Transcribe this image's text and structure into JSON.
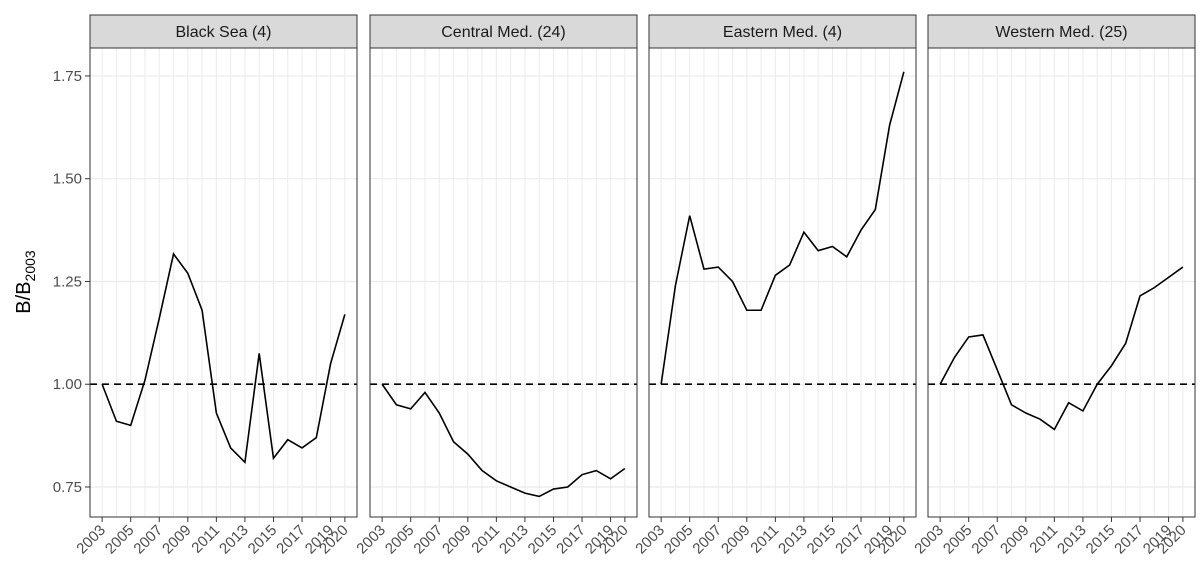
{
  "chart_data": [
    {
      "type": "line",
      "title": "Black Sea (4)",
      "ylabel": {
        "main": "B/B",
        "sub": "2003"
      },
      "x": [
        2003,
        2004,
        2005,
        2006,
        2007,
        2008,
        2009,
        2010,
        2011,
        2012,
        2013,
        2014,
        2015,
        2016,
        2017,
        2018,
        2019,
        2020
      ],
      "series": [
        {
          "color": "#000000",
          "values": [
            1.0,
            0.91,
            0.9,
            1.01,
            1.16,
            1.317,
            1.27,
            1.18,
            0.93,
            0.845,
            0.81,
            1.075,
            0.82,
            0.865,
            0.845,
            0.87,
            1.05,
            1.17
          ]
        }
      ],
      "xlim": [
        2002.15,
        2020.85
      ],
      "xticks": [
        2003,
        2005,
        2007,
        2009,
        2011,
        2013,
        2015,
        2017,
        2019,
        2020
      ],
      "ylim": [
        0.677,
        1.818
      ],
      "yticks": [
        0.75,
        {
          "value": 1,
          "label": "1.00"
        },
        1.25,
        {
          "value": 1.5,
          "label": "1.50"
        },
        1.75
      ],
      "hline": 1,
      "grid": true
    },
    {
      "type": "line",
      "title": "Central Med. (24)",
      "x": [
        2003,
        2004,
        2005,
        2006,
        2007,
        2008,
        2009,
        2010,
        2011,
        2012,
        2013,
        2014,
        2015,
        2016,
        2017,
        2018,
        2019,
        2020
      ],
      "series": [
        {
          "color": "#000000",
          "values": [
            1.0,
            0.95,
            0.94,
            0.98,
            0.93,
            0.86,
            0.83,
            0.79,
            0.765,
            0.75,
            0.735,
            0.727,
            0.745,
            0.75,
            0.78,
            0.79,
            0.77,
            0.795
          ]
        }
      ],
      "xlim": [
        2002.15,
        2020.85
      ],
      "xticks": [
        2003,
        2005,
        2007,
        2009,
        2011,
        2013,
        2015,
        2017,
        2019,
        2020
      ],
      "ylim": [
        0.677,
        1.818
      ],
      "yticks": [
        0.75,
        {
          "value": 1,
          "label": "1.00"
        },
        1.25,
        {
          "value": 1.5,
          "label": "1.50"
        },
        1.75
      ],
      "hline": 1,
      "grid": true
    },
    {
      "type": "line",
      "title": "Eastern Med. (4)",
      "x": [
        2003,
        2004,
        2005,
        2006,
        2007,
        2008,
        2009,
        2010,
        2011,
        2012,
        2013,
        2014,
        2015,
        2016,
        2017,
        2018,
        2019,
        2020
      ],
      "series": [
        {
          "color": "#000000",
          "values": [
            1.0,
            1.24,
            1.41,
            1.28,
            1.285,
            1.25,
            1.18,
            1.18,
            1.265,
            1.29,
            1.37,
            1.325,
            1.335,
            1.31,
            1.375,
            1.425,
            1.63,
            1.76
          ]
        }
      ],
      "xlim": [
        2002.15,
        2020.85
      ],
      "xticks": [
        2003,
        2005,
        2007,
        2009,
        2011,
        2013,
        2015,
        2017,
        2019,
        2020
      ],
      "ylim": [
        0.677,
        1.818
      ],
      "yticks": [
        0.75,
        {
          "value": 1,
          "label": "1.00"
        },
        1.25,
        {
          "value": 1.5,
          "label": "1.50"
        },
        1.75
      ],
      "hline": 1,
      "grid": true
    },
    {
      "type": "line",
      "title": "Western Med. (25)",
      "x": [
        2003,
        2004,
        2005,
        2006,
        2007,
        2008,
        2009,
        2010,
        2011,
        2012,
        2013,
        2014,
        2015,
        2016,
        2017,
        2018,
        2019,
        2020
      ],
      "series": [
        {
          "color": "#000000",
          "values": [
            1.0,
            1.065,
            1.115,
            1.12,
            1.035,
            0.95,
            0.93,
            0.915,
            0.89,
            0.955,
            0.935,
            1.0,
            1.045,
            1.1,
            1.215,
            1.235,
            1.26,
            1.285
          ]
        }
      ],
      "xlim": [
        2002.15,
        2020.85
      ],
      "xticks": [
        2003,
        2005,
        2007,
        2009,
        2011,
        2013,
        2015,
        2017,
        2019,
        2020
      ],
      "ylim": [
        0.677,
        1.818
      ],
      "yticks": [
        0.75,
        {
          "value": 1,
          "label": "1.00"
        },
        1.25,
        {
          "value": 1.5,
          "label": "1.50"
        },
        1.75
      ],
      "hline": 1,
      "grid": true
    }
  ]
}
